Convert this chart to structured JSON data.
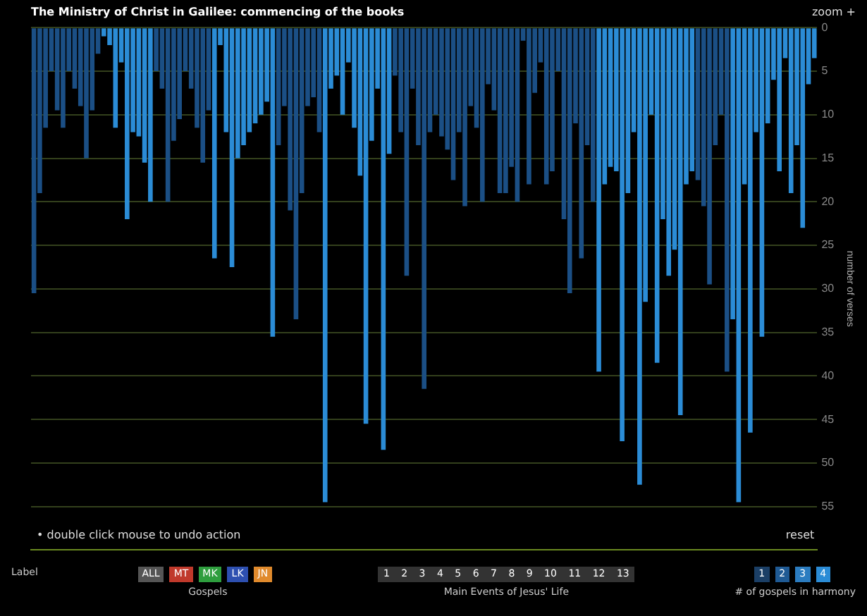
{
  "chart_data": {
    "type": "bar",
    "title": "The Ministry of Christ in Galilee: commencing of the books",
    "ylabel": "number of verses",
    "categories": [
      null,
      null,
      null,
      null,
      null,
      null,
      null,
      null,
      null,
      null,
      null,
      null,
      null,
      null,
      null,
      null,
      null,
      null,
      null,
      null,
      null,
      null,
      null,
      null,
      null,
      null,
      null,
      null,
      null,
      null,
      null,
      null,
      null,
      null,
      null,
      null,
      null,
      null,
      null,
      null,
      null,
      null,
      null,
      null,
      null,
      null,
      null,
      null,
      null,
      null,
      null,
      null,
      null,
      null,
      null,
      null,
      null,
      null,
      null,
      null,
      null,
      null,
      null,
      null,
      null,
      null,
      null,
      null,
      null,
      null,
      null,
      null,
      null,
      null,
      null,
      null,
      null,
      null,
      null,
      null,
      null,
      null,
      null,
      null,
      null,
      null,
      null,
      null,
      null,
      null,
      null,
      null,
      null,
      null,
      null,
      null,
      null,
      null,
      null,
      null,
      null,
      null,
      null,
      null,
      null,
      null,
      null,
      null,
      null,
      null,
      null,
      null,
      null,
      null,
      null,
      null,
      null,
      null,
      null,
      null,
      null,
      null,
      null,
      null,
      null,
      null,
      null,
      null,
      null,
      null,
      null,
      null,
      null,
      null,
      null
    ],
    "values": [
      30.5,
      19,
      11.5,
      5,
      9.5,
      11.5,
      5,
      7,
      9,
      15,
      9.5,
      3,
      1,
      2,
      11.5,
      4,
      22,
      12,
      12.5,
      15.5,
      20,
      5,
      7,
      20,
      13,
      10.5,
      5,
      7,
      11.5,
      15.5,
      9.5,
      26.5,
      2,
      12,
      27.5,
      15,
      13.5,
      12,
      11,
      10,
      8.5,
      35.5,
      13.5,
      9,
      21,
      33.5,
      19,
      9,
      8,
      12,
      54.5,
      7,
      5.5,
      10,
      4,
      11.5,
      17,
      45.5,
      13,
      7,
      48.5,
      14.5,
      5.5,
      12,
      28.5,
      7,
      13.5,
      41.5,
      12,
      10,
      12.5,
      14,
      17.5,
      12,
      20.5,
      9,
      11.5,
      20,
      6.5,
      9.5,
      19,
      19,
      16,
      20,
      1.5,
      18,
      7.5,
      4,
      18,
      16.5,
      5,
      22,
      30.5,
      11,
      26.5,
      13.5,
      20,
      39.5,
      18,
      16,
      16.5,
      47.5,
      19,
      12,
      52.5,
      31.5,
      10,
      38.5,
      22,
      28.5,
      25.5,
      44.5,
      18,
      16.5,
      17.5,
      20.5,
      29.5,
      13.5,
      10,
      39.5,
      33.5,
      54.5,
      18,
      46.5,
      12,
      35.5,
      11,
      6,
      16.5,
      3.5,
      19,
      13.5,
      23,
      6.5,
      3.5
    ],
    "colors": [
      "#1b4f85",
      "#1b4f85",
      "#1b4f85",
      "#1b4f85",
      "#1b4f85",
      "#1b4f85",
      "#1b4f85",
      "#1b4f85",
      "#1b4f85",
      "#1b4f85",
      "#1b4f85",
      "#1b4f85",
      "#2b8cd6",
      "#2b8cd6",
      "#2b8cd6",
      "#2b8cd6",
      "#2b8cd6",
      "#2b8cd6",
      "#2b8cd6",
      "#2b8cd6",
      "#2b8cd6",
      "#1b4f85",
      "#1b4f85",
      "#1b4f85",
      "#1b4f85",
      "#1b4f85",
      "#1b4f85",
      "#1b4f85",
      "#1b4f85",
      "#1b4f85",
      "#1b4f85",
      "#2b8cd6",
      "#2b8cd6",
      "#2b8cd6",
      "#2b8cd6",
      "#2b8cd6",
      "#2b8cd6",
      "#2b8cd6",
      "#2b8cd6",
      "#2b8cd6",
      "#2b8cd6",
      "#2b8cd6",
      "#1b4f85",
      "#1b4f85",
      "#1b4f85",
      "#1b4f85",
      "#1b4f85",
      "#1b4f85",
      "#1b4f85",
      "#1b4f85",
      "#2b8cd6",
      "#2b8cd6",
      "#2b8cd6",
      "#2b8cd6",
      "#2b8cd6",
      "#2b8cd6",
      "#2b8cd6",
      "#2b8cd6",
      "#2b8cd6",
      "#2b8cd6",
      "#2b8cd6",
      "#2b8cd6",
      "#1b4f85",
      "#1b4f85",
      "#1b4f85",
      "#1b4f85",
      "#1b4f85",
      "#1b4f85",
      "#1b4f85",
      "#1b4f85",
      "#1b4f85",
      "#1b4f85",
      "#1b4f85",
      "#1b4f85",
      "#1b4f85",
      "#1b4f85",
      "#1b4f85",
      "#1b4f85",
      "#1b4f85",
      "#1b4f85",
      "#1b4f85",
      "#1b4f85",
      "#1b4f85",
      "#1b4f85",
      "#1b4f85",
      "#1b4f85",
      "#1b4f85",
      "#1b4f85",
      "#1b4f85",
      "#1b4f85",
      "#1b4f85",
      "#1b4f85",
      "#1b4f85",
      "#1b4f85",
      "#1b4f85",
      "#1b4f85",
      "#1b4f85",
      "#2b8cd6",
      "#2b8cd6",
      "#2b8cd6",
      "#2b8cd6",
      "#2b8cd6",
      "#2b8cd6",
      "#2b8cd6",
      "#2b8cd6",
      "#2b8cd6",
      "#2b8cd6",
      "#2b8cd6",
      "#2b8cd6",
      "#2b8cd6",
      "#2b8cd6",
      "#2b8cd6",
      "#2b8cd6",
      "#2b8cd6",
      "#1b4f85",
      "#1b4f85",
      "#1b4f85",
      "#1b4f85",
      "#1b4f85",
      "#1b4f85",
      "#2b8cd6",
      "#2b8cd6",
      "#2b8cd6",
      "#2b8cd6",
      "#2b8cd6",
      "#2b8cd6",
      "#2b8cd6",
      "#2b8cd6",
      "#2b8cd6",
      "#2b8cd6",
      "#2b8cd6",
      "#2b8cd6",
      "#2b8cd6",
      "#2b8cd6",
      "#2b8cd6"
    ],
    "ylim": [
      60,
      0
    ],
    "yticks": [
      0,
      5,
      10,
      15,
      20,
      25,
      30,
      35,
      40,
      45,
      50,
      55
    ],
    "grid": "y",
    "annotations": [
      "• double click mouse to undo action",
      "zoom +",
      "reset",
      "Label",
      "ALL",
      "MT",
      "MK",
      "LK",
      "JN",
      "Gospels",
      "1 2 3 4 5 6 7 8 9 10 11 12 13",
      "Main Events of Jesus' Life",
      "1",
      "2",
      "3",
      "4",
      "# of gospels in harmony"
    ]
  }
}
